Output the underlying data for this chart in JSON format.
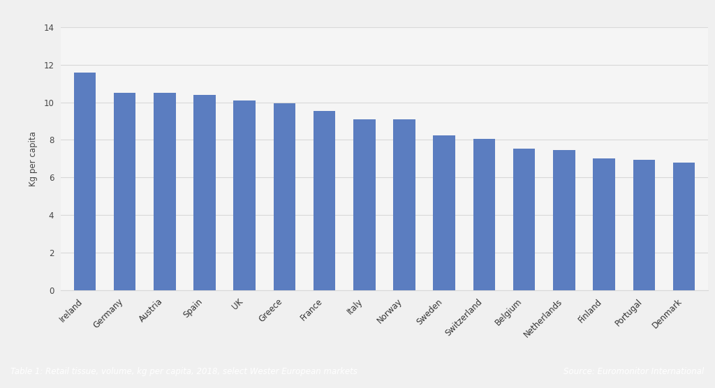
{
  "categories": [
    "Ireland",
    "Germany",
    "Austria",
    "Spain",
    "UK",
    "Greece",
    "France",
    "Italy",
    "Norway",
    "Sweden",
    "Switzerland",
    "Belgium",
    "Netherlands",
    "Finland",
    "Portugal",
    "Denmark"
  ],
  "values": [
    11.6,
    10.5,
    10.5,
    10.4,
    10.1,
    9.95,
    9.55,
    9.1,
    9.1,
    8.25,
    8.05,
    7.55,
    7.45,
    7.0,
    6.95,
    6.8
  ],
  "bar_color": "#5b7dc0",
  "ylabel": "Kg per capita",
  "ylim": [
    0,
    14
  ],
  "yticks": [
    0,
    2,
    4,
    6,
    8,
    10,
    12,
    14
  ],
  "background_color": "#f0f0f0",
  "plot_bg_color": "#f5f5f5",
  "footer_bg_color": "#2d5096",
  "footer_text": "Table 1: Retail tissue, volume, kg per capita, 2018, select Wester European markets",
  "footer_source": "Source: Euromonitor International",
  "footer_text_color": "#ffffff",
  "grid_color": "#d8d8d8",
  "tick_label_fontsize": 8.5,
  "ylabel_fontsize": 8.5,
  "footer_fontsize": 8.5
}
